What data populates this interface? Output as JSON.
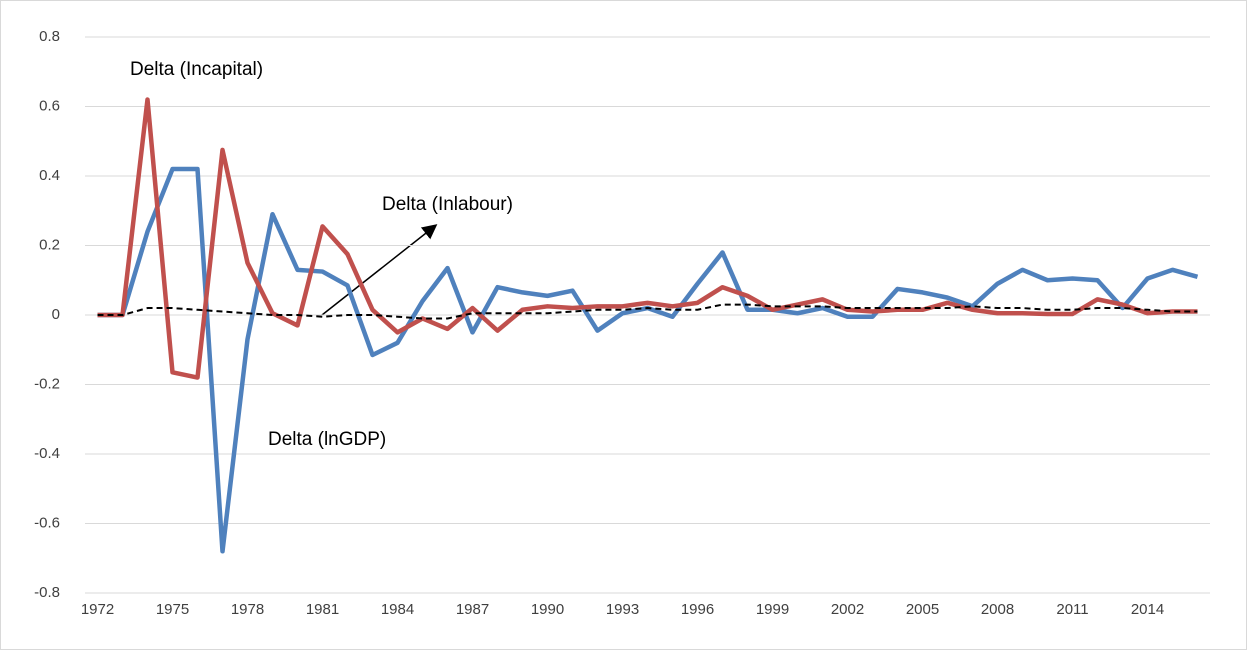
{
  "chart_data": {
    "type": "line",
    "x": [
      1972,
      1973,
      1974,
      1975,
      1976,
      1977,
      1978,
      1979,
      1980,
      1981,
      1982,
      1983,
      1984,
      1985,
      1986,
      1987,
      1988,
      1989,
      1990,
      1991,
      1992,
      1993,
      1994,
      1995,
      1996,
      1997,
      1998,
      1999,
      2000,
      2001,
      2002,
      2003,
      2004,
      2005,
      2006,
      2007,
      2008,
      2009,
      2010,
      2011,
      2012,
      2013,
      2014,
      2015,
      2016
    ],
    "xlim": [
      1971.5,
      2016.5
    ],
    "xticks": [
      1972,
      1975,
      1978,
      1981,
      1984,
      1987,
      1990,
      1993,
      1996,
      1999,
      2002,
      2005,
      2008,
      2011,
      2014
    ],
    "ylim": [
      -0.8,
      0.8
    ],
    "yticks": [
      -0.8,
      -0.6,
      -0.4,
      -0.2,
      0,
      0.2,
      0.4,
      0.6,
      0.8
    ],
    "grid": true,
    "legend": false,
    "series": [
      {
        "name": "Delta (lnGDP)",
        "color": "#4f81bd",
        "dashed": false,
        "values": [
          0,
          0,
          0.24,
          0.42,
          0.42,
          -0.68,
          -0.07,
          0.29,
          0.13,
          0.125,
          0.085,
          -0.115,
          -0.08,
          0.04,
          0.135,
          -0.05,
          0.08,
          0.065,
          0.055,
          0.07,
          -0.045,
          0.005,
          0.02,
          -0.005,
          0.09,
          0.18,
          0.015,
          0.015,
          0.005,
          0.02,
          -0.005,
          -0.005,
          0.075,
          0.065,
          0.05,
          0.025,
          0.09,
          0.13,
          0.1,
          0.105,
          0.1,
          0.02,
          0.105,
          0.13,
          0.11
        ]
      },
      {
        "name": "Delta (Incapital)",
        "color": "#c0504d",
        "dashed": false,
        "values": [
          0,
          0,
          0.62,
          -0.165,
          -0.18,
          0.475,
          0.15,
          0.005,
          -0.03,
          0.255,
          0.175,
          0.015,
          -0.05,
          -0.01,
          -0.04,
          0.02,
          -0.045,
          0.015,
          0.025,
          0.02,
          0.025,
          0.025,
          0.035,
          0.025,
          0.035,
          0.08,
          0.055,
          0.015,
          0.03,
          0.045,
          0.015,
          0.01,
          0.015,
          0.015,
          0.035,
          0.015,
          0.005,
          0.005,
          0.003,
          0.003,
          0.045,
          0.03,
          0.005,
          0.01,
          0.01
        ]
      },
      {
        "name": "Delta (Inlabour)",
        "color": "#000000",
        "dashed": true,
        "values": [
          0,
          0,
          0.02,
          0.02,
          0.015,
          0.01,
          0.005,
          0,
          0,
          -0.005,
          0,
          0,
          -0.005,
          -0.01,
          -0.01,
          0.005,
          0.005,
          0.005,
          0.005,
          0.01,
          0.015,
          0.015,
          0.02,
          0.015,
          0.015,
          0.03,
          0.03,
          0.025,
          0.025,
          0.025,
          0.02,
          0.02,
          0.02,
          0.02,
          0.02,
          0.025,
          0.02,
          0.02,
          0.015,
          0.015,
          0.02,
          0.02,
          0.015,
          0.01,
          0.01
        ]
      }
    ]
  }
}
